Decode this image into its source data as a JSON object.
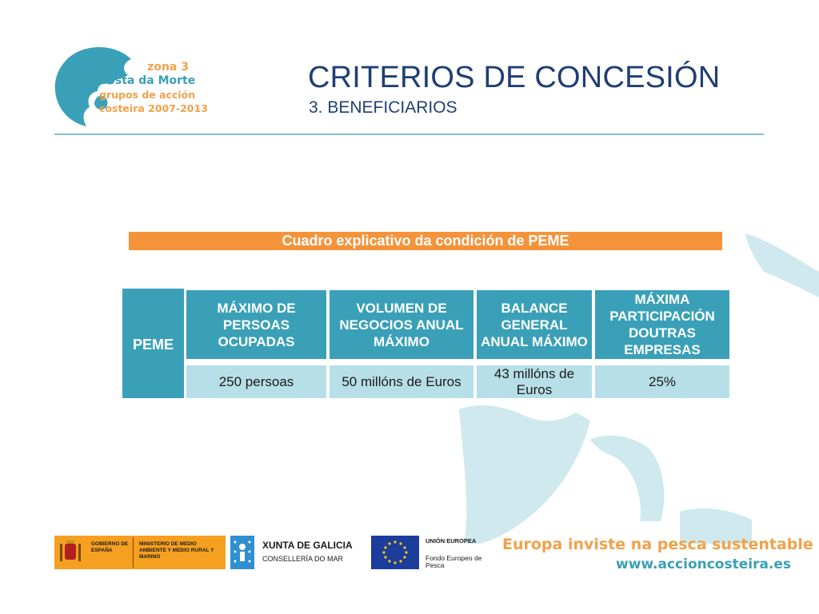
{
  "logo": {
    "zone": "zona 3",
    "name": "Costa da Morte",
    "line3": "grupos de acción",
    "line4": "costeira 2007-2013"
  },
  "header": {
    "title": "CRITERIOS DE CONCESIÓN",
    "subtitle": "3. BENEFICIARIOS"
  },
  "table": {
    "caption": "Cuadro explicativo da condición de PEME",
    "row_label": "PEME",
    "headers": [
      "MÁXIMO DE PERSOAS OCUPADAS",
      "VOLUMEN DE NEGOCIOS ANUAL MÁXIMO",
      "BALANCE GENERAL ANUAL MÁXIMO",
      "MÁXIMA PARTICIPACIÓN DOUTRAS EMPRESAS"
    ],
    "values": [
      "250 persoas",
      "50 millóns de Euros",
      "43 millóns de Euros",
      "25%"
    ]
  },
  "footer": {
    "gobierno": "GOBIERNO DE ESPAÑA",
    "ministerio": "MINISTERIO DE MEDIO AMBIENTE Y MEDIO RURAL Y MARINO",
    "xunta": "XUNTA DE GALICIA",
    "conselleria": "CONSELLERÍA DO MAR",
    "eu_title": "UNIÓN EUROPEA",
    "eu_fund": "Fondo Europeo de Pesca",
    "slogan": "Europa inviste na pesca sustentable",
    "website": "www.accioncosteira.es"
  },
  "colors": {
    "title": "#1f3f73",
    "teal": "#3aa0b8",
    "light_teal": "#b7dfe7",
    "orange": "#f4933a"
  }
}
